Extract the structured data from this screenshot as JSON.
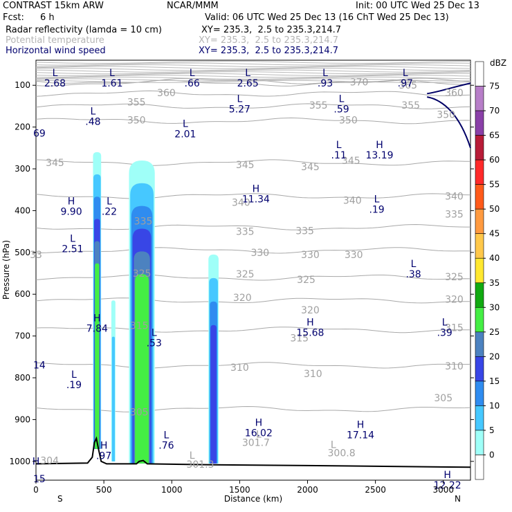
{
  "header": {
    "model": "CONTRAST 15km ARW",
    "org": "NCAR/MMM",
    "init": "Init: 00 UTC Wed 25 Dec 13",
    "fcst_label": "Fcst:",
    "fcst_value": "6 h",
    "valid": "Valid: 06 UTC Wed 25 Dec 13 (16 ChT Wed 25 Dec 13)",
    "fields": [
      {
        "name": "Radar reflectivity (lamda = 10 cm)",
        "xy": "XY= 235.3,  2.5 to 235.3,214.7"
      },
      {
        "name": "Potential temperature",
        "xy": "XY= 235.3,  2.5 to 235.3,214.7"
      },
      {
        "name": "Horizontal wind speed",
        "xy": "XY= 235.3,  2.5 to 235.3,214.7"
      }
    ]
  },
  "chart_data": {
    "type": "heatmap",
    "xlabel": "Distance (km)",
    "ylabel": "Pressure (hPa)",
    "xlim": [
      0,
      3200
    ],
    "ylim": [
      1045,
      40
    ],
    "xticks": [
      0,
      500,
      1000,
      1500,
      2000,
      2500,
      3000
    ],
    "yticks": [
      100,
      200,
      300,
      400,
      500,
      600,
      700,
      800,
      900,
      1000
    ],
    "x_end_labels": {
      "left": "S",
      "right": "N"
    },
    "colorbar": {
      "unit": "dBZ",
      "levels": [
        0,
        5,
        10,
        15,
        20,
        25,
        30,
        35,
        40,
        45,
        50,
        55,
        60,
        65,
        70,
        75
      ],
      "colors": [
        "#ffffff",
        "#9ffff8",
        "#46c8ff",
        "#2f8cf0",
        "#3846e6",
        "#4c82c0",
        "#44ee44",
        "#11aa11",
        "#ffe830",
        "#ffc84a",
        "#ff9a40",
        "#ff5a1a",
        "#ff2a2a",
        "#b81c38",
        "#8a40a8",
        "#b77ec8",
        "#ffffff"
      ]
    },
    "reflectivity_cells": [
      {
        "x_range": [
          420,
          480
        ],
        "p_top": 260,
        "p_bottom": 970,
        "max_dbz": 30
      },
      {
        "x_range": [
          555,
          585
        ],
        "p_top": 615,
        "p_bottom": 1000,
        "max_dbz": 10
      },
      {
        "x_range": [
          685,
          875
        ],
        "p_top": 280,
        "p_bottom": 1005,
        "max_dbz": 30
      },
      {
        "x_range": [
          1270,
          1345
        ],
        "p_top": 505,
        "p_bottom": 1005,
        "max_dbz": 20
      }
    ],
    "theta_isentropes": [
      {
        "label": "370",
        "p": 90
      },
      {
        "label": "365",
        "p": 95
      },
      {
        "label": "360",
        "p": 120
      },
      {
        "label": "355",
        "p": 150
      },
      {
        "label": "350",
        "p": 185
      },
      {
        "label": "345",
        "p": 285
      },
      {
        "label": "340",
        "p": 365
      },
      {
        "label": "335",
        "p": 440
      },
      {
        "label": "330",
        "p": 495
      },
      {
        "label": "325",
        "p": 560
      },
      {
        "label": "320",
        "p": 615
      },
      {
        "label": "315",
        "p": 685
      },
      {
        "label": "310",
        "p": 770
      },
      {
        "label": "305",
        "p": 875
      }
    ],
    "theta_labels": [
      {
        "text": "360",
        "x": 960,
        "p": 118
      },
      {
        "text": "370",
        "x": 2380,
        "p": 92
      },
      {
        "text": "365",
        "x": 2740,
        "p": 100
      },
      {
        "text": "360",
        "x": 3080,
        "p": 118
      },
      {
        "text": "355",
        "x": 740,
        "p": 140
      },
      {
        "text": "355",
        "x": 2080,
        "p": 148
      },
      {
        "text": "355",
        "x": 2760,
        "p": 148
      },
      {
        "text": "350",
        "x": 740,
        "p": 183
      },
      {
        "text": "350",
        "x": 2300,
        "p": 183
      },
      {
        "text": "350",
        "x": 3020,
        "p": 170
      },
      {
        "text": "345",
        "x": 140,
        "p": 285
      },
      {
        "text": "345",
        "x": 1540,
        "p": 290
      },
      {
        "text": "345",
        "x": 2020,
        "p": 295
      },
      {
        "text": "345",
        "x": 2320,
        "p": 280
      },
      {
        "text": "340",
        "x": 1510,
        "p": 380
      },
      {
        "text": "340",
        "x": 2330,
        "p": 375
      },
      {
        "text": "340",
        "x": 3080,
        "p": 365
      },
      {
        "text": "335",
        "x": 790,
        "p": 425
      },
      {
        "text": "335",
        "x": 1540,
        "p": 450
      },
      {
        "text": "335",
        "x": 1980,
        "p": 448
      },
      {
        "text": "335",
        "x": 3080,
        "p": 408
      },
      {
        "text": "330",
        "x": 1650,
        "p": 500
      },
      {
        "text": "330",
        "x": 2020,
        "p": 505
      },
      {
        "text": "330",
        "x": 2340,
        "p": 505
      },
      {
        "text": "33",
        "x": 0,
        "p": 505
      },
      {
        "text": "325",
        "x": 780,
        "p": 550
      },
      {
        "text": "325",
        "x": 1540,
        "p": 552
      },
      {
        "text": "325",
        "x": 1990,
        "p": 565
      },
      {
        "text": "325",
        "x": 3080,
        "p": 558
      },
      {
        "text": "320",
        "x": 1520,
        "p": 608
      },
      {
        "text": "320",
        "x": 2020,
        "p": 638
      },
      {
        "text": "320",
        "x": 3080,
        "p": 612
      },
      {
        "text": "315",
        "x": 760,
        "p": 675
      },
      {
        "text": "315",
        "x": 1940,
        "p": 705
      },
      {
        "text": "315",
        "x": 3080,
        "p": 680
      },
      {
        "text": "310",
        "x": 1500,
        "p": 775
      },
      {
        "text": "310",
        "x": 2040,
        "p": 790
      },
      {
        "text": "310",
        "x": 3080,
        "p": 772
      },
      {
        "text": "305",
        "x": 760,
        "p": 882
      },
      {
        "text": "305",
        "x": 3000,
        "p": 848
      },
      {
        "text": "301.7",
        "x": 1620,
        "p": 955
      },
      {
        "text": "300.8",
        "x": 2250,
        "p": 980
      },
      {
        "text": "301.3",
        "x": 1210,
        "p": 1007
      },
      {
        "text": "304",
        "x": 100,
        "p": 998
      }
    ],
    "theta_extrema": [
      {
        "text": "L",
        "x": 1640,
        "p": 935
      },
      {
        "text": "L",
        "x": 2190,
        "p": 960
      },
      {
        "text": "L",
        "x": 1150,
        "p": 985
      }
    ],
    "wind_extrema": [
      {
        "type": "L",
        "value": "2.68",
        "x": 140,
        "p": 78
      },
      {
        "type": "L",
        "value": "1.61",
        "x": 560,
        "p": 78
      },
      {
        "type": "L",
        "value": ".66",
        "x": 1150,
        "p": 78
      },
      {
        "type": "L",
        "value": "2.65",
        "x": 1560,
        "p": 78
      },
      {
        "type": "L",
        "value": ".93",
        "x": 2130,
        "p": 78
      },
      {
        "type": "L",
        "value": ".97",
        "x": 2720,
        "p": 78
      },
      {
        "type": "L",
        "value": "5.27",
        "x": 1500,
        "p": 140
      },
      {
        "type": "L",
        "value": ".59",
        "x": 2250,
        "p": 140
      },
      {
        "type": "L",
        "value": ".48",
        "x": 420,
        "p": 170
      },
      {
        "type": "L",
        "value": "2.01",
        "x": 1100,
        "p": 200
      },
      {
        "type": "L",
        "value": ".11",
        "x": 2230,
        "p": 250
      },
      {
        "type": "H",
        "value": "13.19",
        "x": 2530,
        "p": 250
      },
      {
        "type": "H",
        "value": "11.34",
        "x": 1620,
        "p": 355
      },
      {
        "type": "H",
        "value": "9.90",
        "x": 260,
        "p": 385
      },
      {
        "type": "L",
        "value": ".22",
        "x": 540,
        "p": 385
      },
      {
        "type": "L",
        "value": ".19",
        "x": 2510,
        "p": 380
      },
      {
        "type": "L",
        "value": "2.51",
        "x": 270,
        "p": 475
      },
      {
        "type": "L",
        "value": ".38",
        "x": 2780,
        "p": 535
      },
      {
        "type": "H",
        "value": "7.84",
        "x": 450,
        "p": 665
      },
      {
        "type": "H",
        "value": "15.68",
        "x": 2020,
        "p": 675
      },
      {
        "type": "L",
        "value": ".39",
        "x": 3010,
        "p": 675
      },
      {
        "type": "L",
        "value": ".53",
        "x": 870,
        "p": 700
      },
      {
        "type": "L",
        "value": ".19",
        "x": 280,
        "p": 800
      },
      {
        "type": "H",
        "value": "16.02",
        "x": 1640,
        "p": 915
      },
      {
        "type": "H",
        "value": "17.14",
        "x": 2390,
        "p": 920
      },
      {
        "type": "L",
        "value": ".76",
        "x": 960,
        "p": 945
      },
      {
        "type": "H",
        "value": ".97",
        "x": 500,
        "p": 970
      },
      {
        "type": "H",
        "value": "12.22",
        "x": 3030,
        "p": 1040
      }
    ],
    "wind_edge_labels": [
      {
        "text": "69",
        "x": 35,
        "p": 223
      },
      {
        "text": "14",
        "x": 35,
        "p": 778
      },
      {
        "text": "15",
        "x": 35,
        "p": 1050
      },
      {
        "text": "H",
        "x": 10,
        "p": 1008
      }
    ],
    "wind_contour_label": "350",
    "terrain": [
      [
        0,
        1006
      ],
      [
        380,
        1004
      ],
      [
        415,
        990
      ],
      [
        430,
        955
      ],
      [
        445,
        945
      ],
      [
        460,
        970
      ],
      [
        480,
        1000
      ],
      [
        520,
        1006
      ],
      [
        740,
        1006
      ],
      [
        760,
        1000
      ],
      [
        790,
        998
      ],
      [
        820,
        1006
      ],
      [
        1300,
        1008
      ],
      [
        2000,
        1010
      ],
      [
        3200,
        1014
      ]
    ]
  }
}
